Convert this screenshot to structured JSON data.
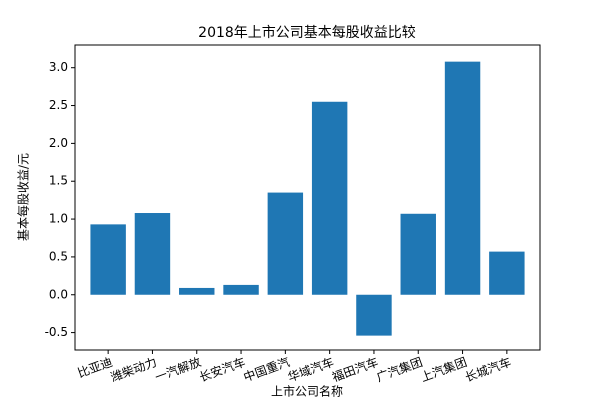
{
  "chart_data": {
    "type": "bar",
    "title": "2018年上市公司基本每股收益比较",
    "x_label": "上市公司名称",
    "y_label": "基本每股收益/元",
    "categories": [
      "比亚迪",
      "潍柴动力",
      "一汽解放",
      "长安汽车",
      "中国重汽",
      "华域汽车",
      "福田汽车",
      "广汽集团",
      "上汽集团",
      "长城汽车"
    ],
    "values": [
      0.93,
      1.08,
      0.09,
      0.13,
      1.35,
      2.55,
      -0.54,
      1.07,
      3.08,
      0.57
    ],
    "color": "#1f77b4",
    "ylim": [
      -0.73,
      3.3
    ],
    "yticks": [
      {
        "value": -0.5,
        "label": "-0.5"
      },
      {
        "value": 0,
        "label": "0.0"
      },
      {
        "value": 0.5,
        "label": "0.5"
      },
      {
        "value": 1,
        "label": "1.0"
      },
      {
        "value": 1.5,
        "label": "1.5"
      },
      {
        "value": 2,
        "label": "2.0"
      },
      {
        "value": 2.5,
        "label": "2.5"
      },
      {
        "value": 3,
        "label": "3.0"
      }
    ],
    "grid": false
  }
}
